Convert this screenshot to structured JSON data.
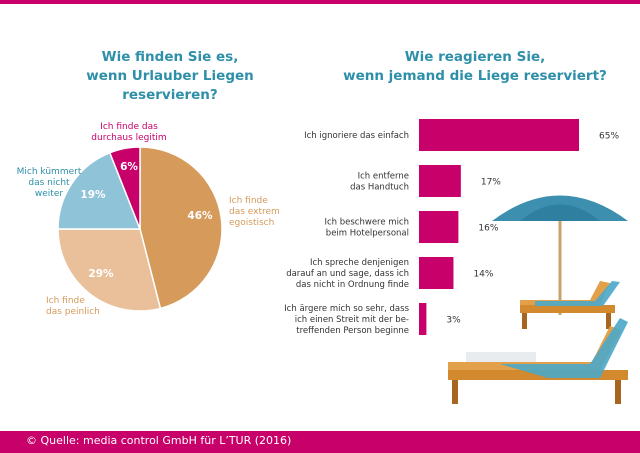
{
  "left_title_line1": "Wie finden Sie es,",
  "left_title_line2": "wenn Urlauber Liegen reservieren?",
  "right_title_line1": "Wie reagieren Sie,",
  "right_title_line2": "wenn jemand die Liege reserviert?",
  "footer": "© Quelle: media control GmbH für L’TUR (2016)",
  "colors": {
    "magenta": "#c8006a",
    "teal": "#2e8fa8",
    "orange": "#d69a5b",
    "peach": "#eac09a",
    "lightblue": "#8fc3d8"
  },
  "chart_data": [
    {
      "type": "pie",
      "slices": [
        {
          "label_lines": [
            "Ich finde",
            "das extrem",
            "egoistisch"
          ],
          "value": 46,
          "value_label": "46%",
          "color": "#d69a5b"
        },
        {
          "label_lines": [
            "Ich finde",
            "das peinlich"
          ],
          "value": 29,
          "value_label": "29%",
          "color": "#eac09a"
        },
        {
          "label_lines": [
            "Mich kümmert",
            "das nicht",
            "weiter"
          ],
          "value": 19,
          "value_label": "19%",
          "color": "#8fc3d8"
        },
        {
          "label_lines": [
            "Ich finde das",
            "durchaus legitim"
          ],
          "value": 6,
          "value_label": "6%",
          "color": "#c8006a"
        }
      ]
    },
    {
      "type": "bar",
      "orientation": "horizontal",
      "categories": [
        [
          "Ich ignoriere das einfach"
        ],
        [
          "Ich entferne",
          "das Handtuch"
        ],
        [
          "Ich beschwere mich",
          "beim Hotelpersonal"
        ],
        [
          "Ich spreche denjenigen",
          "darauf an und sage, dass ich",
          "das nicht in Ordnung finde"
        ],
        [
          "Ich ärgere mich so sehr, dass",
          "ich einen Streit mit der be-",
          "treffenden Person beginne"
        ]
      ],
      "values": [
        65,
        17,
        16,
        14,
        3
      ],
      "value_labels": [
        "65%",
        "17%",
        "16%",
        "14%",
        "3%"
      ],
      "color": "#c8006a"
    }
  ]
}
